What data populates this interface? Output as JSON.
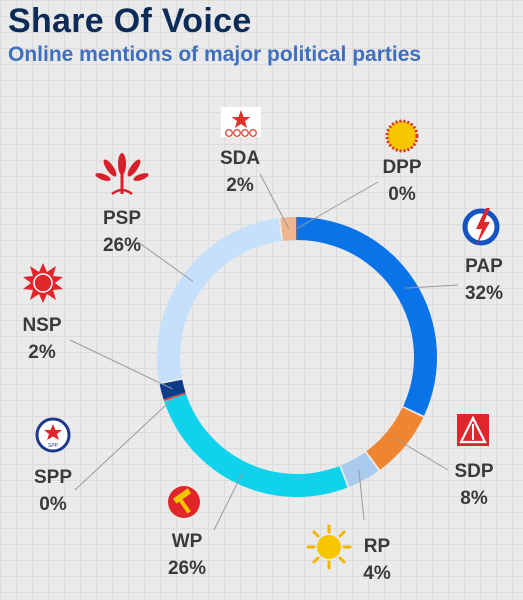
{
  "title": "Share Of Voice",
  "subtitle": "Online mentions of major political parties",
  "chart_data": {
    "type": "pie",
    "style": "donut",
    "categories": [
      "PAP",
      "SDP",
      "RP",
      "WP",
      "SPP",
      "NSP",
      "PSP",
      "SDA",
      "DPP"
    ],
    "values": [
      32,
      8,
      4,
      26,
      0,
      2,
      26,
      2,
      0
    ],
    "value_labels": [
      "32%",
      "8%",
      "4%",
      "26%",
      "0%",
      "2%",
      "26%",
      "2%",
      "0%"
    ],
    "colors": [
      "#0a73e8",
      "#ef8431",
      "#aacbed",
      "#10d2ec",
      "#d33b2c",
      "#0b3a88",
      "#c4e0fb",
      "#f1b58f",
      "#1b4f98"
    ],
    "icons": [
      "pap-logo-icon",
      "sdp-logo-icon",
      "rp-sun-icon",
      "wp-hammer-icon",
      "spp-logo-icon",
      "nsp-sun-icon",
      "psp-flower-icon",
      "sda-star-icon",
      "dpp-sun-icon"
    ]
  }
}
